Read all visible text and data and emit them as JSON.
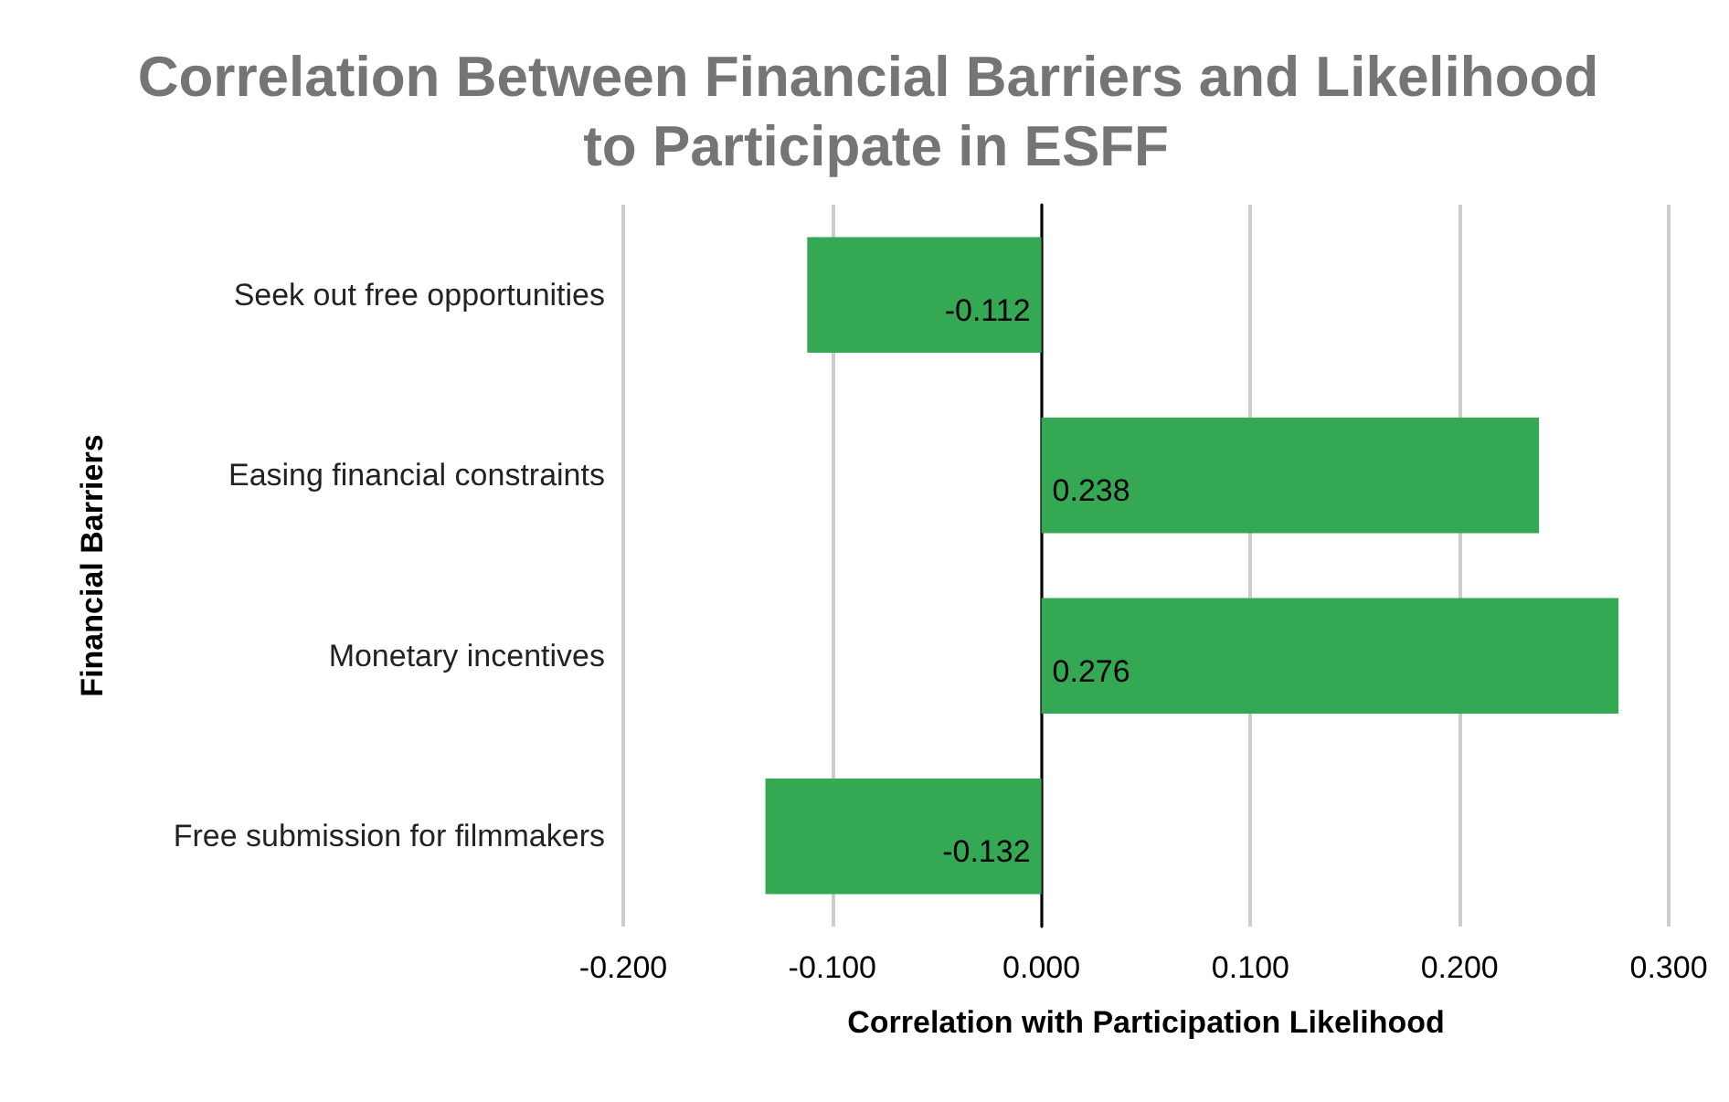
{
  "chart_data": {
    "type": "bar",
    "orientation": "horizontal",
    "title": "Correlation Between Financial Barriers and Likelihood to Participate in ESFF",
    "xlabel": "Correlation with Participation Likelihood",
    "ylabel": "Financial Barriers",
    "categories": [
      "Seek out free opportunities",
      "Easing financial constraints",
      "Monetary incentives",
      "Free submission for filmmakers"
    ],
    "values": [
      -0.112,
      0.238,
      0.276,
      -0.132
    ],
    "value_labels": [
      "-0.112",
      "0.238",
      "0.276",
      "-0.132"
    ],
    "color": "#34a853",
    "xlim": [
      -0.2,
      0.3
    ],
    "xticks": [
      {
        "value": -0.2,
        "label": "-0.200"
      },
      {
        "value": -0.1,
        "label": "-0.100"
      },
      {
        "value": 0,
        "label": "0.000"
      },
      {
        "value": 0.1,
        "label": "0.100"
      },
      {
        "value": 0.2,
        "label": "0.200"
      },
      {
        "value": 0.3,
        "label": "0.300"
      }
    ],
    "grid": "x"
  }
}
